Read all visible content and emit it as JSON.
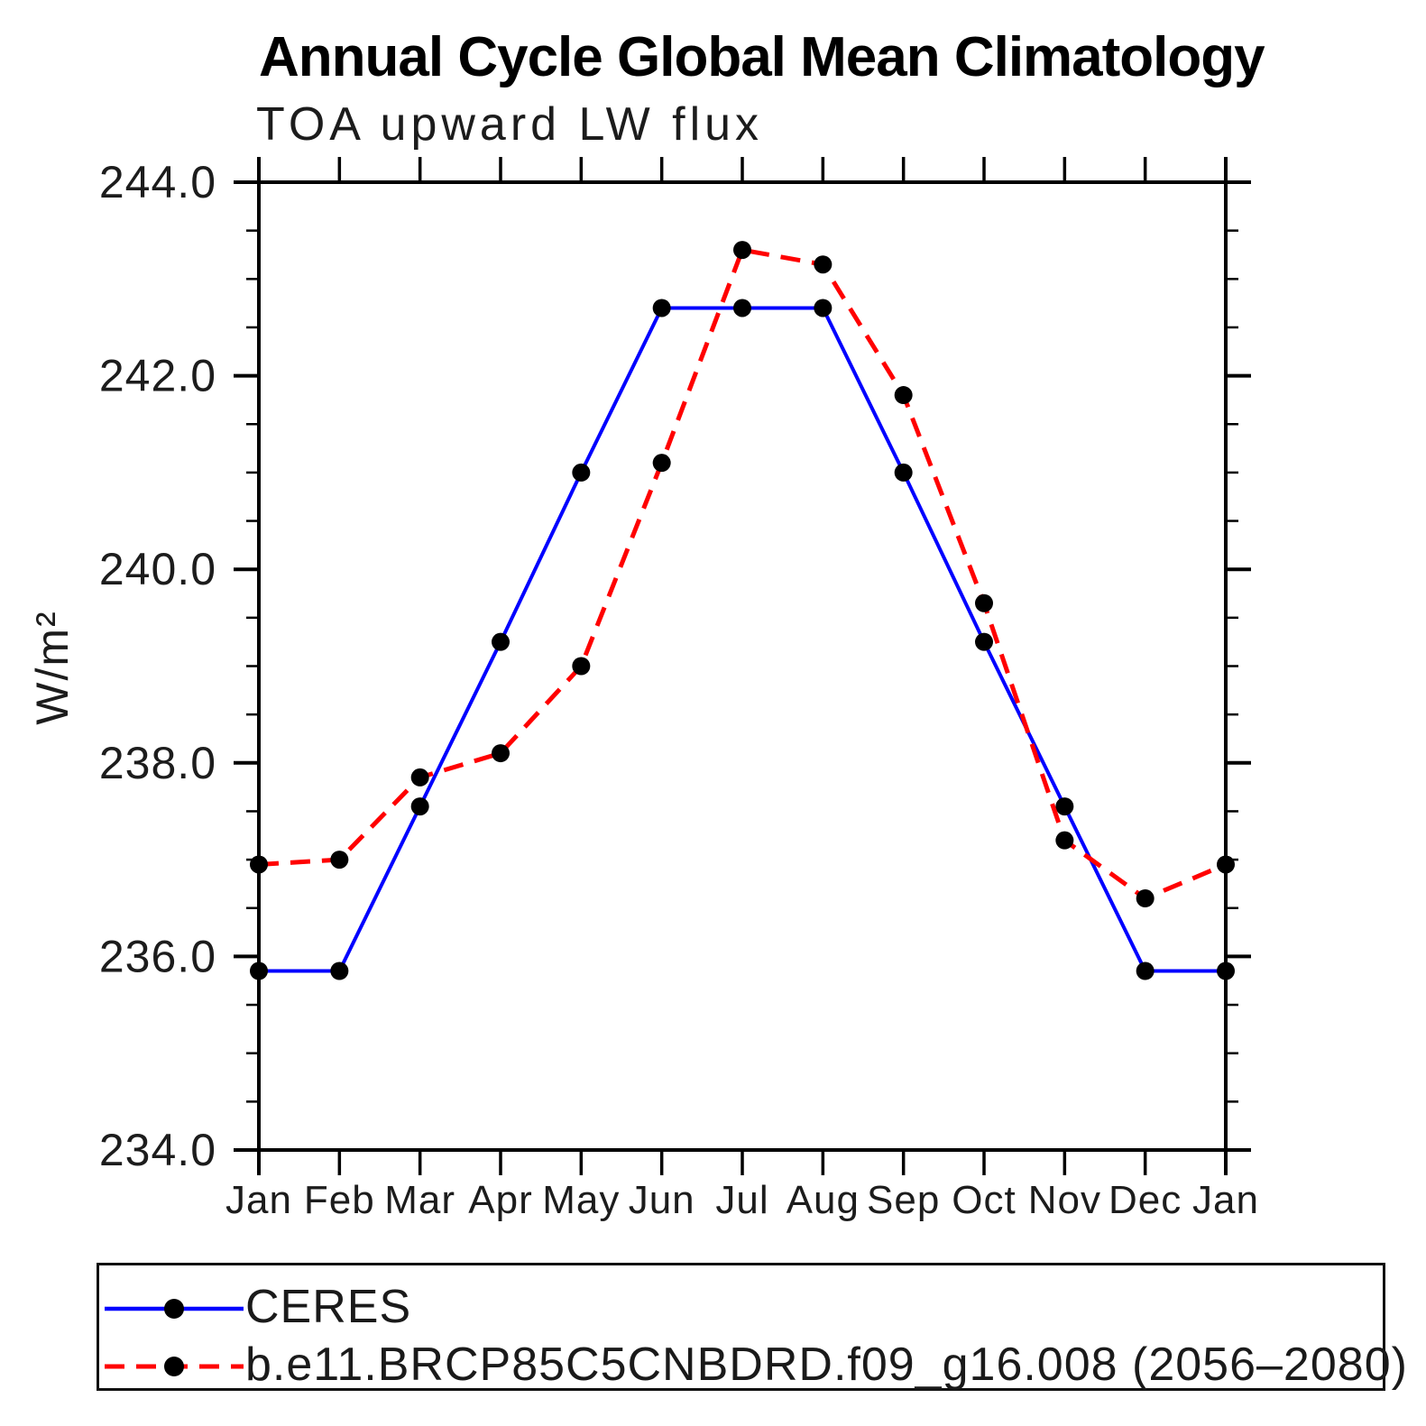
{
  "chart_data": {
    "type": "line",
    "title": "Annual Cycle Global Mean Climatology",
    "subtitle": "TOA upward LW flux",
    "ylabel": "W/m²",
    "xlabel": "",
    "ylim": [
      234.0,
      244.0
    ],
    "ytick_major_interval": 2.0,
    "ytick_minor_interval": 0.5,
    "ytick_labels": [
      "244.0",
      "242.0",
      "240.0",
      "238.0",
      "236.0",
      "234.0"
    ],
    "grid": false,
    "legend_position": "bottom-left-box",
    "categories": [
      "Jan",
      "Feb",
      "Mar",
      "Apr",
      "May",
      "Jun",
      "Jul",
      "Aug",
      "Sep",
      "Oct",
      "Nov",
      "Dec",
      "Jan"
    ],
    "series": [
      {
        "name": "CERES",
        "color": "#0000ff",
        "line_style": "solid",
        "marker": "filled-circle",
        "marker_color": "#000000",
        "values": [
          235.85,
          235.85,
          237.55,
          239.25,
          241.0,
          242.7,
          242.7,
          242.7,
          241.0,
          239.25,
          237.55,
          235.85,
          235.85
        ]
      },
      {
        "name": "b.e11.BRCP85C5CNBDRD.f09_g16.008 (2056–2080)",
        "color": "#ff0000",
        "line_style": "dashed",
        "marker": "filled-circle",
        "marker_color": "#000000",
        "values": [
          236.95,
          237.0,
          237.85,
          238.1,
          239.0,
          241.1,
          243.3,
          243.15,
          241.8,
          239.65,
          237.2,
          236.6,
          236.95
        ]
      }
    ]
  }
}
